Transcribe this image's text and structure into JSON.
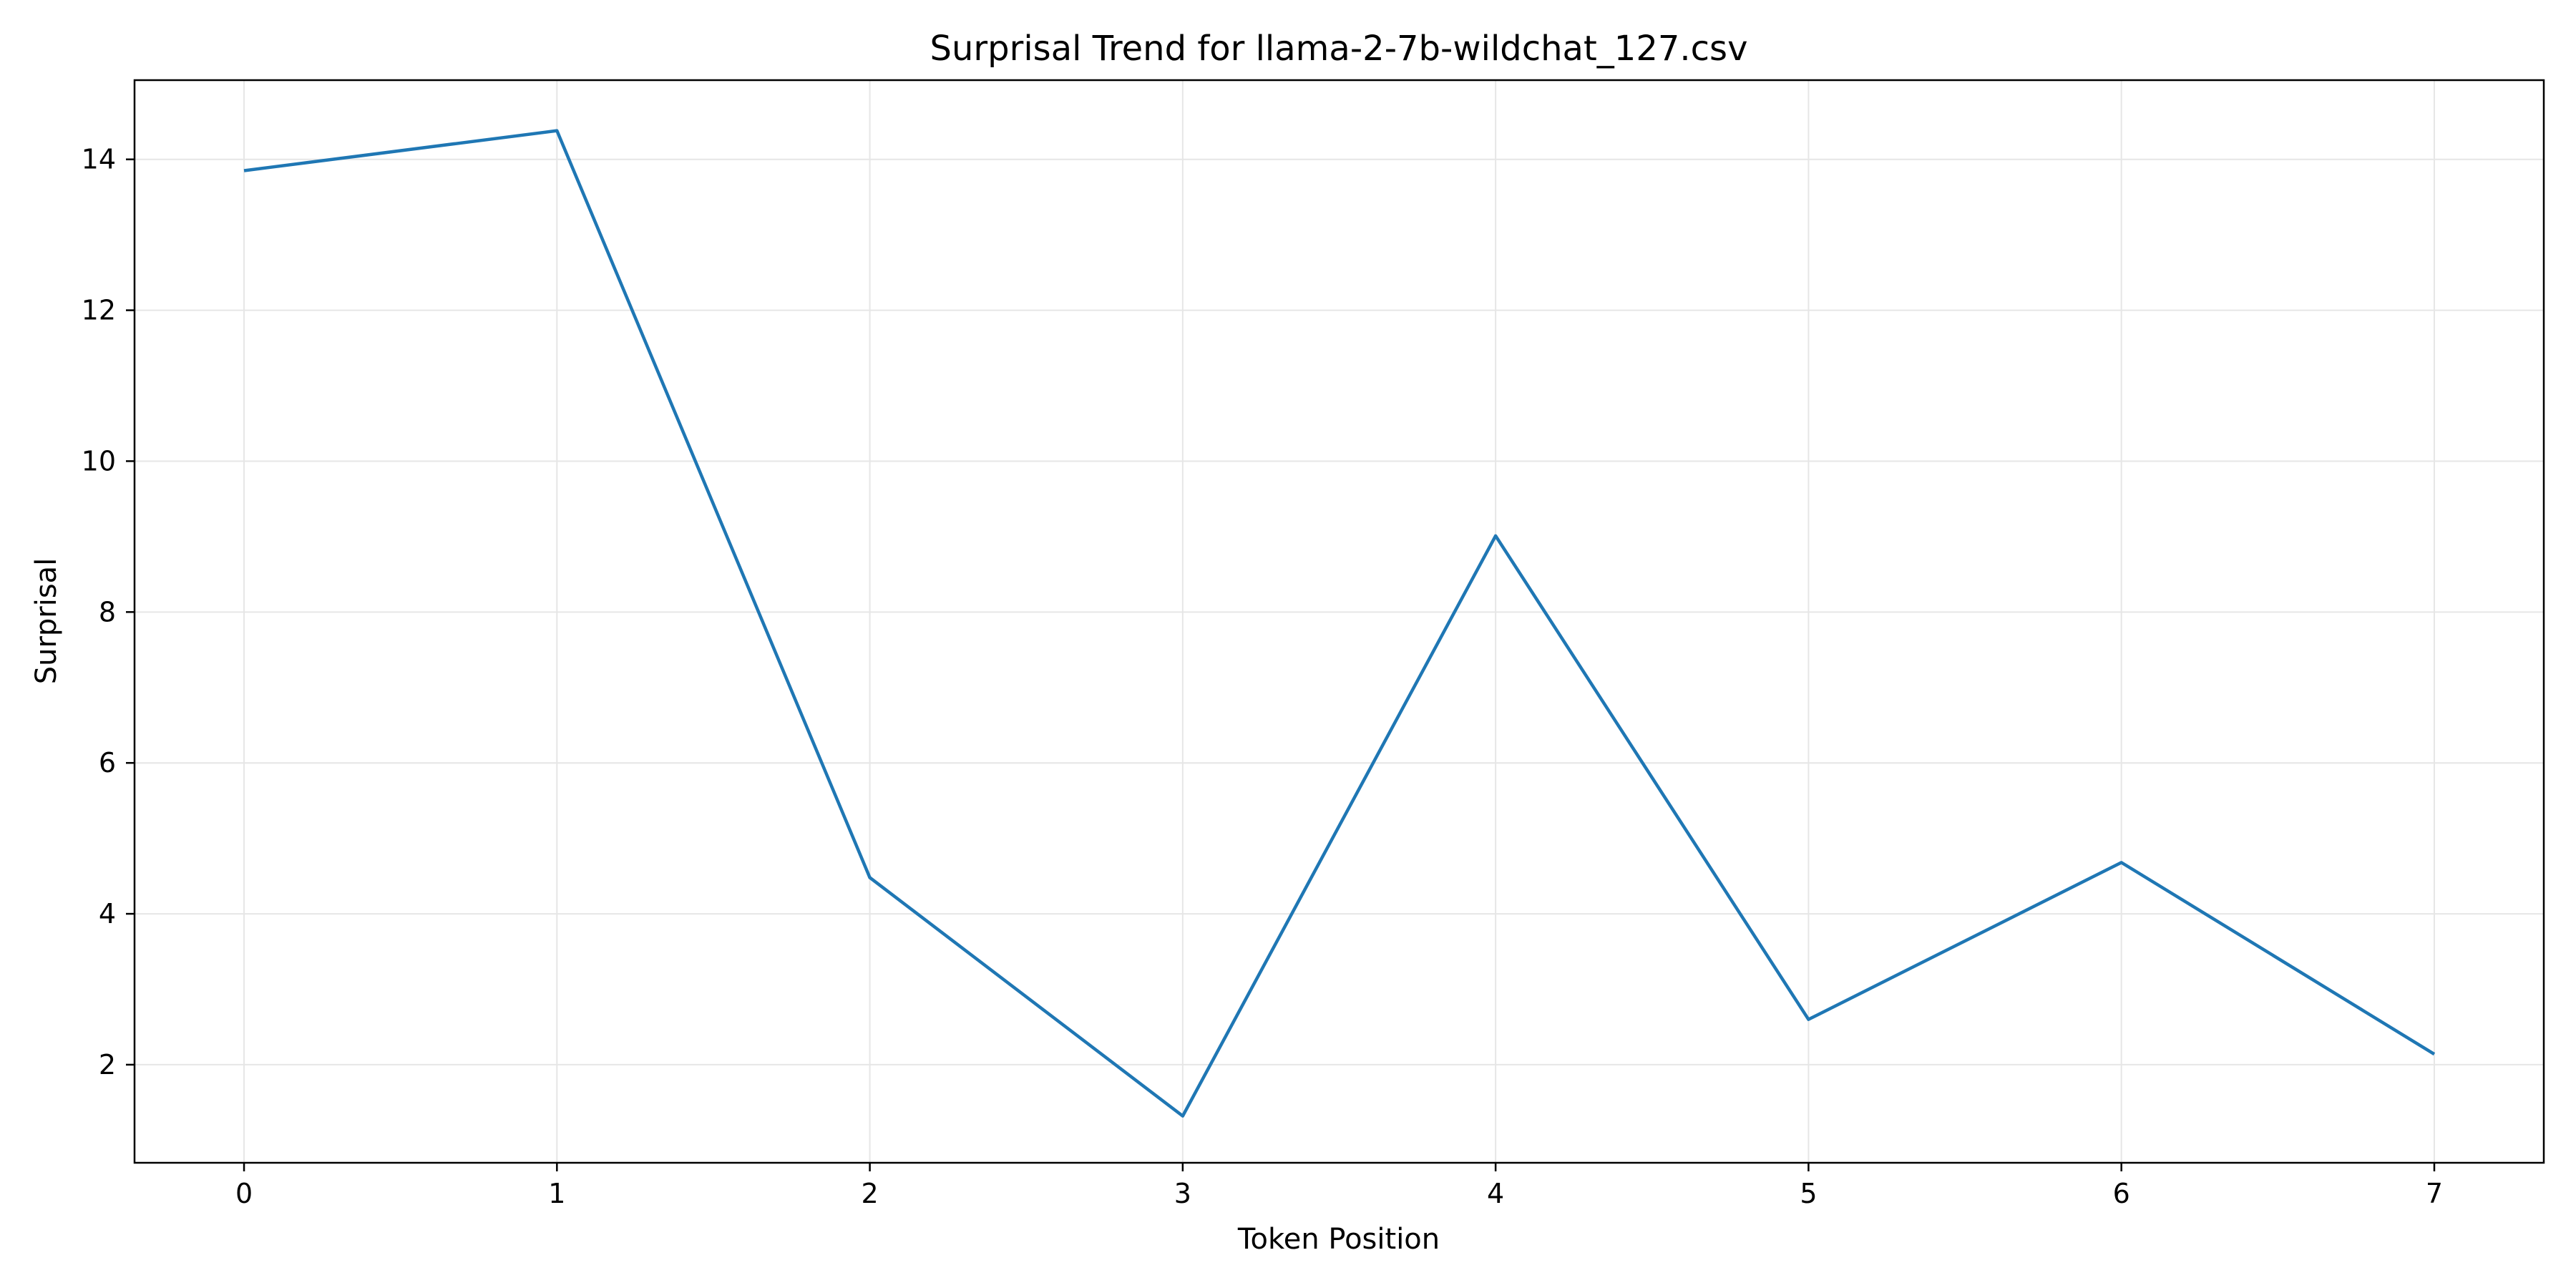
{
  "chart_data": {
    "type": "line",
    "title": "Surprisal Trend for llama-2-7b-wildchat_127.csv",
    "xlabel": "Token Position",
    "ylabel": "Surprisal",
    "x": [
      0,
      1,
      2,
      3,
      4,
      5,
      6,
      7
    ],
    "series": [
      {
        "values": [
          13.85,
          14.38,
          4.48,
          1.32,
          9.01,
          2.6,
          4.68,
          2.14
        ]
      }
    ],
    "xlim": [
      -0.35,
      7.35
    ],
    "ylim": [
      0.7,
      15.05
    ],
    "xticks": [
      0,
      1,
      2,
      3,
      4,
      5,
      6,
      7
    ],
    "yticks": [
      2,
      4,
      6,
      8,
      10,
      12,
      14
    ],
    "grid": true,
    "line_color": "#1f77b4"
  }
}
